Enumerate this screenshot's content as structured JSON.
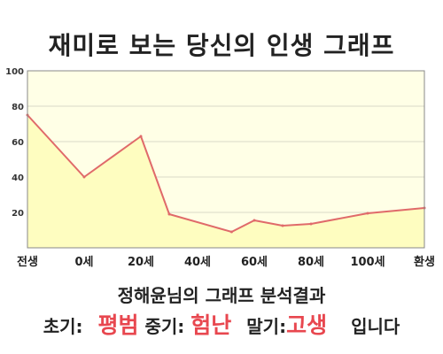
{
  "title": "재미로 보는 당신의 인생 그래프",
  "caption": "정해윤님의 그래프 분석결과",
  "summary": {
    "early_label": "초기:",
    "early_value": "평범",
    "mid_label": "중기:",
    "mid_value": "험난",
    "late_label": "말기:",
    "late_value": "고생",
    "suffix": "입니다"
  },
  "colors": {
    "plot_background": "#ffffe6",
    "area_fill": "#fefdc0",
    "line": "#e06a6a",
    "highlight": "#e8474f"
  },
  "chart_data": {
    "type": "area",
    "title": "재미로 보는 당신의 인생 그래프",
    "xlabel": "",
    "ylabel": "",
    "x_ticks": [
      "전생",
      "0세",
      "20세",
      "40세",
      "60세",
      "80세",
      "100세",
      "환생"
    ],
    "x": [
      0,
      1,
      2,
      2.5,
      3.6,
      4,
      4.5,
      5,
      6,
      7
    ],
    "y": [
      75,
      40,
      63,
      19,
      9,
      15.5,
      12.5,
      13.5,
      19.5,
      22.5
    ],
    "y_ticks": [
      20,
      40,
      60,
      80,
      100
    ],
    "ylim": [
      0,
      100
    ],
    "grid": true,
    "legend": "none"
  }
}
